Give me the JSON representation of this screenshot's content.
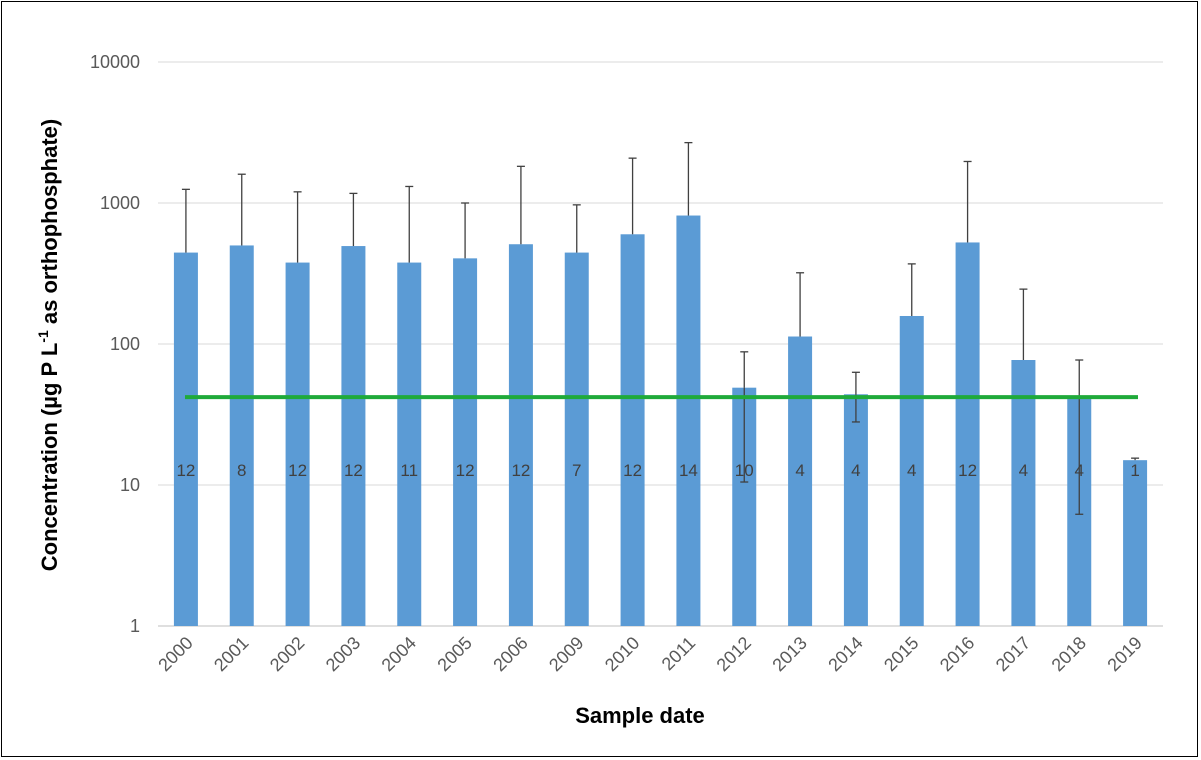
{
  "chart_data": {
    "type": "bar",
    "xlabel": "Sample date",
    "ylabel_parts": [
      "Concentration (µg P L",
      "-1",
      " as orthophosphate)"
    ],
    "yscale": "log",
    "ylim": [
      1,
      10000
    ],
    "yticks": [
      "1",
      "10",
      "100",
      "1000",
      "10000"
    ],
    "grid": "horizontal",
    "categories": [
      "2000",
      "2001",
      "2002",
      "2003",
      "2004",
      "2005",
      "2006",
      "2009",
      "2010",
      "2011",
      "2012",
      "2013",
      "2014",
      "2015",
      "2016",
      "2017",
      "2018",
      "2019"
    ],
    "values": [
      445,
      500,
      378,
      495,
      378,
      405,
      510,
      445,
      600,
      815,
      49,
      113,
      44,
      158,
      525,
      77,
      43,
      15
    ],
    "error_upper": [
      1250,
      1600,
      1200,
      1170,
      1310,
      1000,
      1820,
      970,
      2080,
      2680,
      88,
      320,
      63,
      370,
      1970,
      245,
      77,
      15.5
    ],
    "error_lower": [
      null,
      null,
      null,
      null,
      null,
      null,
      null,
      null,
      null,
      null,
      10.5,
      null,
      28,
      null,
      null,
      null,
      6.2,
      null
    ],
    "counts": [
      "12",
      "8",
      "12",
      "12",
      "11",
      "12",
      "12",
      "7",
      "12",
      "14",
      "10",
      "4",
      "4",
      "4",
      "12",
      "4",
      "4",
      "1"
    ],
    "reference_line": {
      "value": 42,
      "color": "#1FAA3A"
    },
    "bar_color": "#5B9BD5"
  }
}
